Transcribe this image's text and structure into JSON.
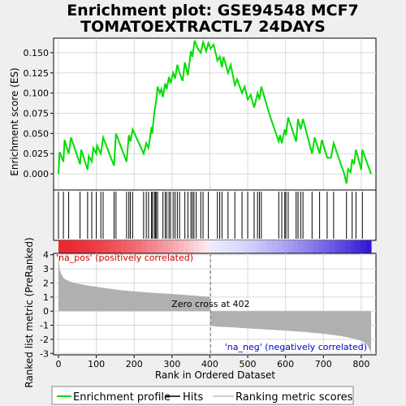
{
  "chart_data": {
    "type": "line",
    "title_line1": "Enrichment plot: GSE94548 MCF7",
    "title_line2": "TOMATOEXTRACTL7 24DAYS",
    "top_panel": {
      "ylabel": "Enrichment score (ES)",
      "ylim": [
        -0.02,
        0.168
      ],
      "yticks": [
        "0.000",
        "0.025",
        "0.050",
        "0.075",
        "0.100",
        "0.125",
        "0.150"
      ],
      "ytick_values": [
        0.0,
        0.025,
        0.05,
        0.075,
        0.1,
        0.125,
        0.15
      ],
      "line_color": "#00dd00",
      "series": [
        {
          "x": 0,
          "y": 0.0
        },
        {
          "x": 3,
          "y": 0.027
        },
        {
          "x": 13,
          "y": 0.015
        },
        {
          "x": 16,
          "y": 0.042
        },
        {
          "x": 27,
          "y": 0.025
        },
        {
          "x": 33,
          "y": 0.045
        },
        {
          "x": 57,
          "y": 0.012
        },
        {
          "x": 60,
          "y": 0.03
        },
        {
          "x": 77,
          "y": 0.005
        },
        {
          "x": 80,
          "y": 0.022
        },
        {
          "x": 88,
          "y": 0.015
        },
        {
          "x": 92,
          "y": 0.032
        },
        {
          "x": 100,
          "y": 0.025
        },
        {
          "x": 102,
          "y": 0.035
        },
        {
          "x": 112,
          "y": 0.025
        },
        {
          "x": 118,
          "y": 0.045
        },
        {
          "x": 147,
          "y": 0.01
        },
        {
          "x": 152,
          "y": 0.05
        },
        {
          "x": 180,
          "y": 0.015
        },
        {
          "x": 186,
          "y": 0.048
        },
        {
          "x": 190,
          "y": 0.04
        },
        {
          "x": 196,
          "y": 0.055
        },
        {
          "x": 225,
          "y": 0.025
        },
        {
          "x": 232,
          "y": 0.038
        },
        {
          "x": 238,
          "y": 0.032
        },
        {
          "x": 246,
          "y": 0.058
        },
        {
          "x": 248,
          "y": 0.05
        },
        {
          "x": 253,
          "y": 0.075
        },
        {
          "x": 258,
          "y": 0.09
        },
        {
          "x": 262,
          "y": 0.108
        },
        {
          "x": 268,
          "y": 0.1
        },
        {
          "x": 272,
          "y": 0.105
        },
        {
          "x": 276,
          "y": 0.095
        },
        {
          "x": 282,
          "y": 0.112
        },
        {
          "x": 286,
          "y": 0.105
        },
        {
          "x": 292,
          "y": 0.12
        },
        {
          "x": 296,
          "y": 0.112
        },
        {
          "x": 303,
          "y": 0.125
        },
        {
          "x": 308,
          "y": 0.118
        },
        {
          "x": 314,
          "y": 0.135
        },
        {
          "x": 320,
          "y": 0.125
        },
        {
          "x": 328,
          "y": 0.115
        },
        {
          "x": 334,
          "y": 0.138
        },
        {
          "x": 342,
          "y": 0.122
        },
        {
          "x": 350,
          "y": 0.152
        },
        {
          "x": 354,
          "y": 0.145
        },
        {
          "x": 360,
          "y": 0.165
        },
        {
          "x": 368,
          "y": 0.155
        },
        {
          "x": 376,
          "y": 0.15
        },
        {
          "x": 382,
          "y": 0.163
        },
        {
          "x": 390,
          "y": 0.152
        },
        {
          "x": 396,
          "y": 0.162
        },
        {
          "x": 402,
          "y": 0.155
        },
        {
          "x": 410,
          "y": 0.16
        },
        {
          "x": 420,
          "y": 0.14
        },
        {
          "x": 426,
          "y": 0.145
        },
        {
          "x": 432,
          "y": 0.132
        },
        {
          "x": 436,
          "y": 0.145
        },
        {
          "x": 448,
          "y": 0.125
        },
        {
          "x": 455,
          "y": 0.135
        },
        {
          "x": 466,
          "y": 0.11
        },
        {
          "x": 472,
          "y": 0.117
        },
        {
          "x": 485,
          "y": 0.1
        },
        {
          "x": 492,
          "y": 0.108
        },
        {
          "x": 500,
          "y": 0.092
        },
        {
          "x": 508,
          "y": 0.098
        },
        {
          "x": 517,
          "y": 0.082
        },
        {
          "x": 526,
          "y": 0.1
        },
        {
          "x": 531,
          "y": 0.092
        },
        {
          "x": 536,
          "y": 0.108
        },
        {
          "x": 560,
          "y": 0.07
        },
        {
          "x": 582,
          "y": 0.04
        },
        {
          "x": 585,
          "y": 0.048
        },
        {
          "x": 590,
          "y": 0.038
        },
        {
          "x": 598,
          "y": 0.055
        },
        {
          "x": 601,
          "y": 0.048
        },
        {
          "x": 607,
          "y": 0.07
        },
        {
          "x": 628,
          "y": 0.04
        },
        {
          "x": 633,
          "y": 0.068
        },
        {
          "x": 640,
          "y": 0.055
        },
        {
          "x": 646,
          "y": 0.068
        },
        {
          "x": 670,
          "y": 0.025
        },
        {
          "x": 677,
          "y": 0.045
        },
        {
          "x": 690,
          "y": 0.025
        },
        {
          "x": 696,
          "y": 0.042
        },
        {
          "x": 710,
          "y": 0.02
        },
        {
          "x": 720,
          "y": 0.02
        },
        {
          "x": 727,
          "y": 0.038
        },
        {
          "x": 755,
          "y": 0.0
        },
        {
          "x": 761,
          "y": -0.012
        },
        {
          "x": 765,
          "y": 0.006
        },
        {
          "x": 772,
          "y": 0.002
        },
        {
          "x": 776,
          "y": 0.018
        },
        {
          "x": 781,
          "y": 0.012
        },
        {
          "x": 786,
          "y": 0.03
        },
        {
          "x": 800,
          "y": 0.005
        },
        {
          "x": 803,
          "y": 0.03
        },
        {
          "x": 826,
          "y": 0.0
        }
      ]
    },
    "hits_panel": {
      "hit_positions": [
        0,
        13,
        27,
        57,
        77,
        88,
        100,
        112,
        118,
        147,
        152,
        180,
        186,
        190,
        196,
        225,
        232,
        238,
        246,
        248,
        253,
        256,
        258,
        262,
        276,
        282,
        286,
        292,
        296,
        303,
        308,
        314,
        320,
        334,
        342,
        350,
        354,
        358,
        364,
        376,
        382,
        396,
        420,
        426,
        432,
        448,
        466,
        485,
        500,
        517,
        526,
        531,
        536,
        582,
        590,
        598,
        601,
        607,
        628,
        633,
        640,
        646,
        670,
        690,
        710,
        727,
        761,
        776,
        786,
        803
      ]
    },
    "ranked_panel": {
      "ylabel": "Ranked list metric (PreRanked)",
      "ylim": [
        -3.1,
        4.1
      ],
      "yticks": [
        "4",
        "3",
        "2",
        "1",
        "0",
        "-1",
        "-2",
        "-3"
      ],
      "ytick_values": [
        4,
        3,
        2,
        1,
        0,
        -1,
        -2,
        -3
      ],
      "zero_cross_label": "Zero cross at 402",
      "zero_cross_x": 402,
      "pos_label": "'na_pos' (positively correlated)",
      "neg_label": "'na_neg' (negatively correlated)",
      "pos_color": "#cc0000",
      "neg_color": "#0000cc",
      "metric_profile": [
        {
          "x": 0,
          "y": 4.0
        },
        {
          "x": 3,
          "y": 3.0
        },
        {
          "x": 8,
          "y": 2.6
        },
        {
          "x": 15,
          "y": 2.3
        },
        {
          "x": 30,
          "y": 2.1
        },
        {
          "x": 50,
          "y": 1.95
        },
        {
          "x": 80,
          "y": 1.8
        },
        {
          "x": 120,
          "y": 1.65
        },
        {
          "x": 160,
          "y": 1.5
        },
        {
          "x": 200,
          "y": 1.4
        },
        {
          "x": 250,
          "y": 1.3
        },
        {
          "x": 300,
          "y": 1.22
        },
        {
          "x": 350,
          "y": 1.12
        },
        {
          "x": 401,
          "y": 1.02
        },
        {
          "x": 402,
          "y": -1.05
        },
        {
          "x": 420,
          "y": -1.1
        },
        {
          "x": 460,
          "y": -1.15
        },
        {
          "x": 500,
          "y": -1.22
        },
        {
          "x": 550,
          "y": -1.3
        },
        {
          "x": 600,
          "y": -1.38
        },
        {
          "x": 650,
          "y": -1.48
        },
        {
          "x": 700,
          "y": -1.6
        },
        {
          "x": 750,
          "y": -1.78
        },
        {
          "x": 780,
          "y": -1.95
        },
        {
          "x": 800,
          "y": -2.1
        },
        {
          "x": 815,
          "y": -2.35
        },
        {
          "x": 822,
          "y": -2.7
        },
        {
          "x": 826,
          "y": -3.0
        }
      ]
    },
    "xaxis": {
      "label": "Rank in Ordered Dataset",
      "xlim": [
        0,
        826
      ],
      "ticks": [
        "0",
        "100",
        "200",
        "300",
        "400",
        "500",
        "600",
        "700",
        "800"
      ],
      "tick_values": [
        0,
        100,
        200,
        300,
        400,
        500,
        600,
        700,
        800
      ]
    },
    "legend": {
      "items": [
        {
          "label": "Enrichment profile",
          "color": "#00dd00",
          "kind": "line-thick"
        },
        {
          "label": "Hits",
          "color": "#000000",
          "kind": "line"
        },
        {
          "label": "Ranking metric scores",
          "color": "#c0c0c0",
          "kind": "line"
        }
      ]
    },
    "grid": true
  }
}
